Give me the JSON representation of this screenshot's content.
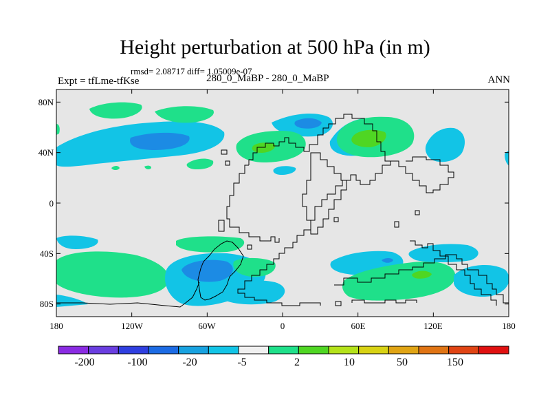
{
  "title": "Height perturbation at 500 hPa (in m)",
  "stats_text": "rmsd= 2.08717 diff= 1.05009e-07",
  "left_label": "Expt = tfLme-tfKse",
  "center_label": "280_0_MaBP - 280_0_MaBP",
  "right_label": "ANN",
  "y_ticks": [
    "80N",
    "40N",
    "0",
    "40S",
    "80S"
  ],
  "x_ticks": [
    "180",
    "120W",
    "60W",
    "0",
    "60E",
    "120E",
    "180"
  ],
  "colorbar": {
    "labels": [
      "-200",
      "-100",
      "-20",
      "-5",
      "2",
      "10",
      "50",
      "150"
    ],
    "colors": [
      "#8a2be2",
      "#6a3ee0",
      "#2f3fe0",
      "#1c6be4",
      "#18a2e0",
      "#12c4e6",
      "#f0f0f0",
      "#1fe08a",
      "#4fd623",
      "#b4e21a",
      "#d8d214",
      "#e0a414",
      "#e07414",
      "#e04414",
      "#e01010"
    ]
  },
  "map": {
    "background_color": "#e6e6e6",
    "lon_range": [
      -180,
      180
    ],
    "lat_range": [
      -90,
      90
    ]
  }
}
